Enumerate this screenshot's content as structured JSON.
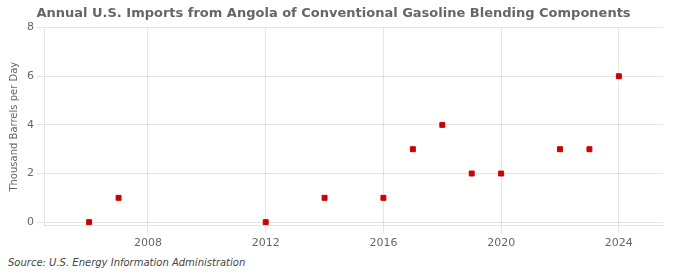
{
  "chart_data": {
    "type": "scatter",
    "title": "Annual U.S. Imports from Angola of Conventional Gasoline Blending Components",
    "ylabel": "Thousand Barrels per Day",
    "source": "Source: U.S. Energy Information Administration",
    "x": [
      2006,
      2007,
      2012,
      2014,
      2016,
      2017,
      2018,
      2019,
      2020,
      2022,
      2023,
      2024
    ],
    "values": [
      0.0,
      1.0,
      0.0,
      1.0,
      1.0,
      3.0,
      4.0,
      2.0,
      2.0,
      3.0,
      3.0,
      6.0
    ],
    "color": "#cc0000",
    "marker": "square",
    "xlim": [
      2004.5,
      2025.5
    ],
    "ylim": [
      -0.15,
      8
    ],
    "xticks": [
      2008,
      2012,
      2016,
      2020,
      2024
    ],
    "yticks": [
      0,
      2,
      4,
      6,
      8
    ],
    "grid": true
  }
}
